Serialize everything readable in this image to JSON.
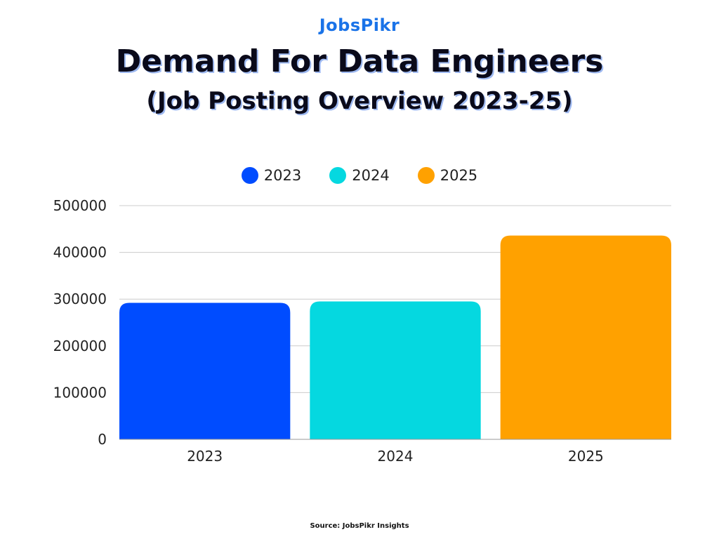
{
  "logo_text": "JobsPikr",
  "title": "Demand For Data Engineers",
  "subtitle": "(Job Posting Overview 2023-25)",
  "source": "Source: JobsPikr Insights",
  "chart_data": {
    "type": "bar",
    "title": "Demand For Data Engineers",
    "subtitle": "(Job Posting Overview 2023-25)",
    "categories": [
      "2023",
      "2024",
      "2025"
    ],
    "values": [
      292000,
      295000,
      436000
    ],
    "colors": [
      "#004cff",
      "#05d8e0",
      "#ffa100"
    ],
    "legend": [
      "2023",
      "2024",
      "2025"
    ],
    "legend_placement": "top",
    "ylim": [
      0,
      500000
    ],
    "yticks": [
      "0",
      "100000",
      "200000",
      "300000",
      "400000",
      "500000"
    ],
    "grid": true
  }
}
